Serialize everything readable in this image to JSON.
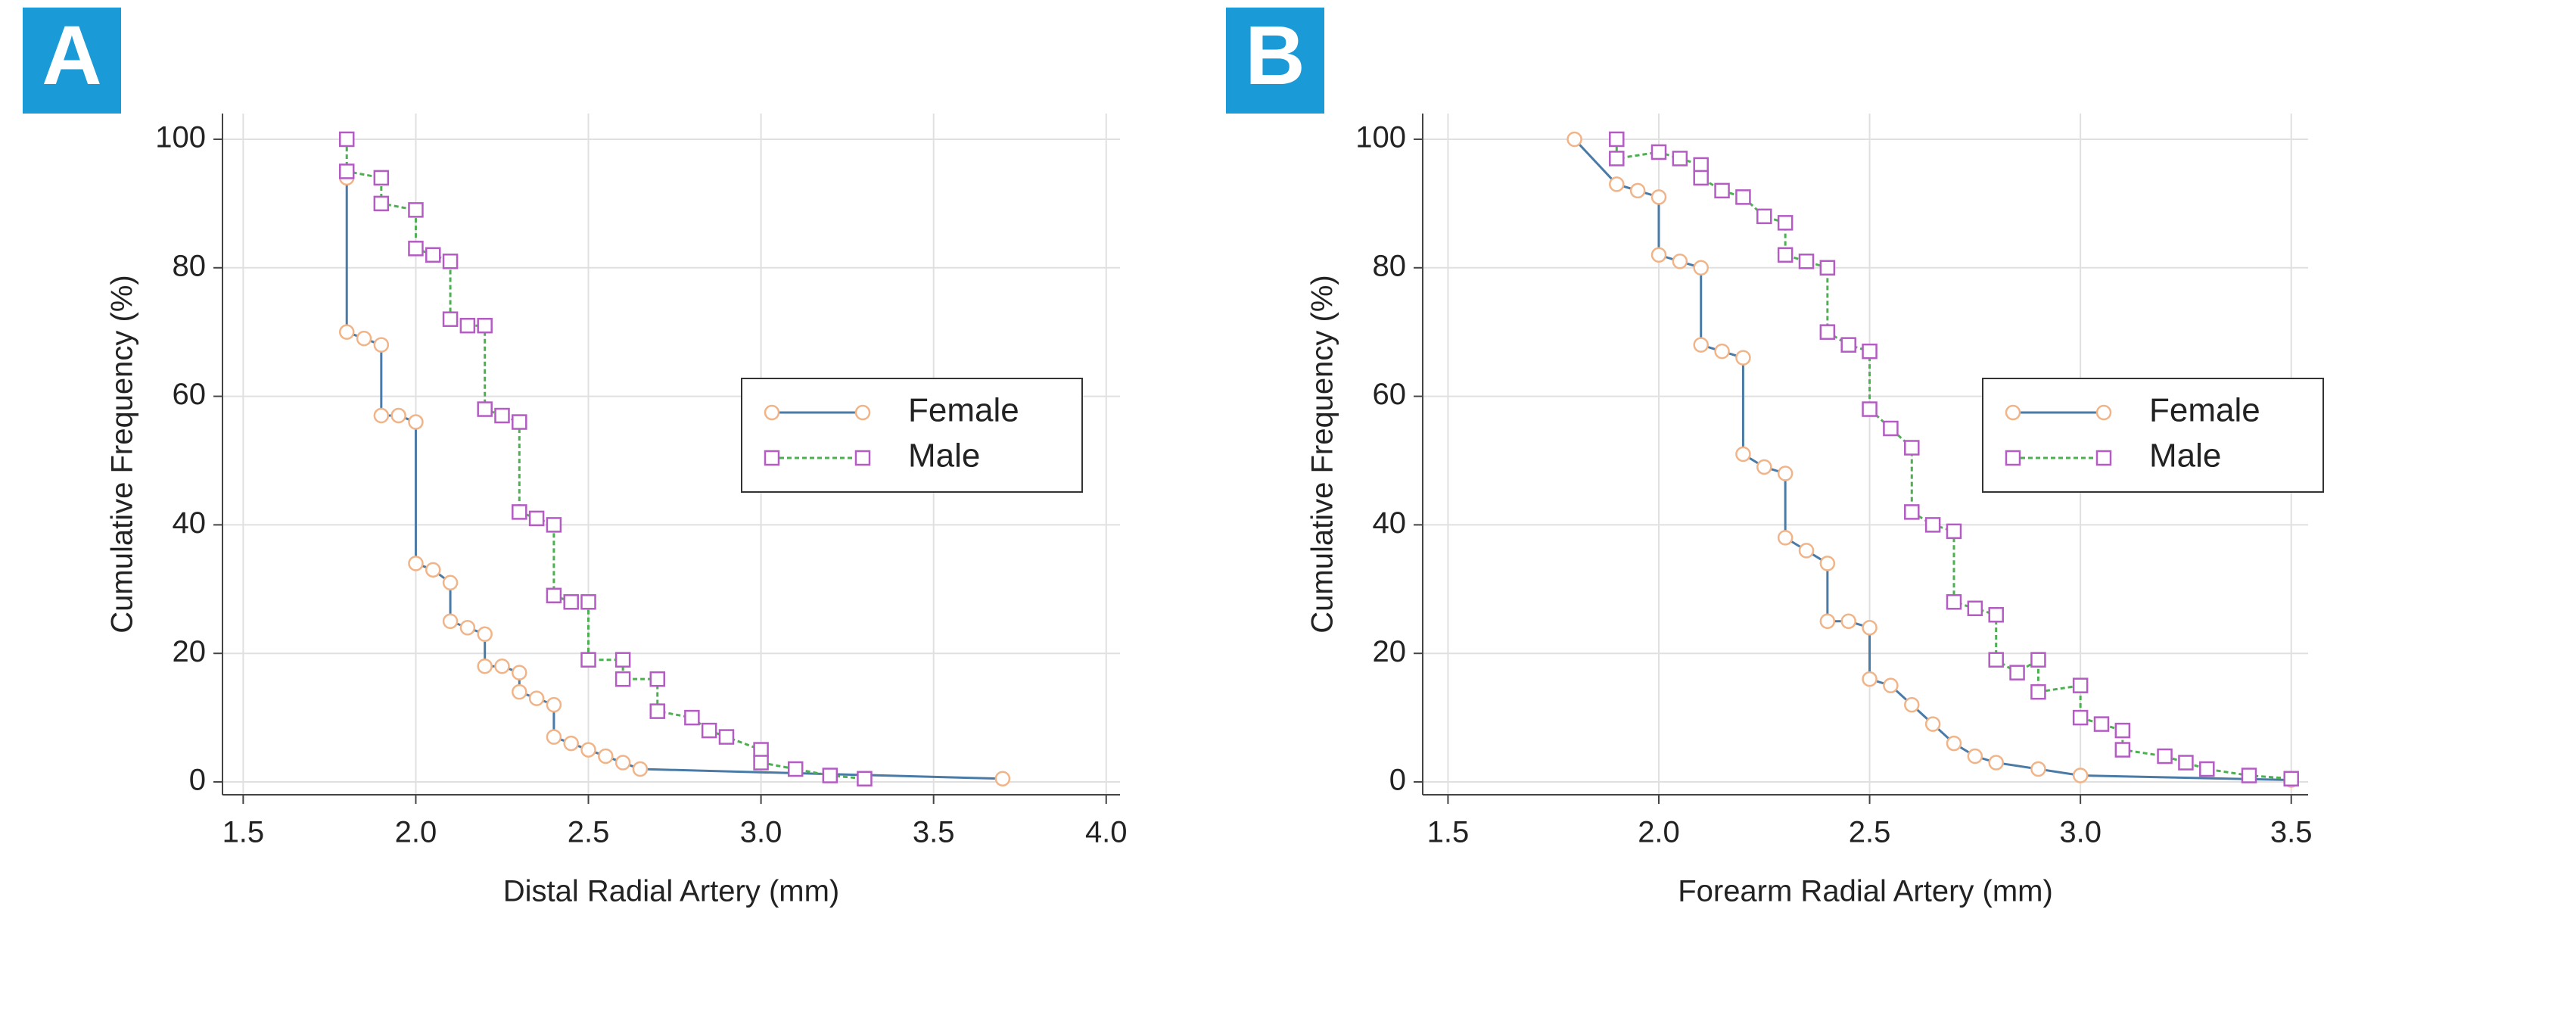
{
  "chart_data": [
    {
      "type": "line",
      "panel_label": "A",
      "xlabel": "Distal Radial Artery (mm)",
      "ylabel": "Cumulative Frequency (%)",
      "xlim": [
        1.44,
        4.04
      ],
      "ylim": [
        -2,
        104
      ],
      "xticks": [
        1.5,
        {
          "value": 2,
          "label": "2.0"
        },
        2.5,
        {
          "value": 3,
          "label": "3.0"
        },
        3.5,
        {
          "value": 4,
          "label": "4.0"
        }
      ],
      "yticks": [
        0,
        20,
        40,
        60,
        80,
        100
      ],
      "grid": true,
      "legend": "center right",
      "series": [
        {
          "name": "Female",
          "color": "#f0b488",
          "line_color": "#4a7aa6",
          "marker": "circle",
          "linestyle": "solid",
          "x": [
            1.8,
            1.8,
            1.85,
            1.9,
            1.9,
            1.95,
            2.0,
            2.0,
            2.05,
            2.1,
            2.1,
            2.15,
            2.2,
            2.2,
            2.25,
            2.3,
            2.3,
            2.35,
            2.4,
            2.4,
            2.45,
            2.5,
            2.55,
            2.6,
            2.65,
            3.7
          ],
          "values": [
            94,
            70,
            69,
            68,
            57,
            57,
            56,
            34,
            33,
            31,
            25,
            24,
            23,
            18,
            18,
            17,
            14,
            13,
            12,
            7,
            6,
            5,
            4,
            3,
            2,
            0.5
          ]
        },
        {
          "name": "Male",
          "color": "#b45cc4",
          "line_color": "#4caf50",
          "marker": "square",
          "linestyle": "dashed",
          "x": [
            1.8,
            1.8,
            1.9,
            1.9,
            2.0,
            2.0,
            2.05,
            2.1,
            2.1,
            2.15,
            2.2,
            2.2,
            2.25,
            2.3,
            2.3,
            2.35,
            2.4,
            2.4,
            2.45,
            2.5,
            2.5,
            2.6,
            2.6,
            2.7,
            2.7,
            2.8,
            2.85,
            2.9,
            3.0,
            3.0,
            3.1,
            3.2,
            3.3
          ],
          "values": [
            100,
            95,
            94,
            90,
            89,
            83,
            82,
            81,
            72,
            71,
            71,
            58,
            57,
            56,
            42,
            41,
            40,
            29,
            28,
            28,
            19,
            19,
            16,
            16,
            11,
            10,
            8,
            7,
            5,
            3,
            2,
            1,
            0.5
          ]
        }
      ]
    },
    {
      "type": "line",
      "panel_label": "B",
      "xlabel": "Forearm Radial Artery (mm)",
      "ylabel": "Cumulative Frequency (%)",
      "xlim": [
        1.44,
        3.54
      ],
      "ylim": [
        -2,
        104
      ],
      "xticks": [
        1.5,
        {
          "value": 2,
          "label": "2.0"
        },
        2.5,
        {
          "value": 3,
          "label": "3.0"
        },
        3.5
      ],
      "yticks": [
        0,
        20,
        40,
        60,
        80,
        100
      ],
      "grid": true,
      "legend": "center right",
      "series": [
        {
          "name": "Female",
          "color": "#f0b488",
          "line_color": "#4a7aa6",
          "marker": "circle",
          "linestyle": "solid",
          "x": [
            1.8,
            1.9,
            1.95,
            2.0,
            2.0,
            2.05,
            2.1,
            2.1,
            2.15,
            2.2,
            2.2,
            2.25,
            2.3,
            2.3,
            2.35,
            2.4,
            2.4,
            2.45,
            2.5,
            2.5,
            2.55,
            2.6,
            2.65,
            2.7,
            2.75,
            2.8,
            2.9,
            3.0,
            3.5
          ],
          "values": [
            100,
            93,
            92,
            91,
            82,
            81,
            80,
            68,
            67,
            66,
            51,
            49,
            48,
            38,
            36,
            34,
            25,
            25,
            24,
            16,
            15,
            12,
            9,
            6,
            4,
            3,
            2,
            1,
            0.3
          ]
        },
        {
          "name": "Male",
          "color": "#b45cc4",
          "line_color": "#4caf50",
          "marker": "square",
          "linestyle": "dashed",
          "x": [
            1.9,
            1.9,
            2.0,
            2.05,
            2.1,
            2.1,
            2.15,
            2.2,
            2.25,
            2.3,
            2.3,
            2.35,
            2.4,
            2.4,
            2.45,
            2.5,
            2.5,
            2.55,
            2.6,
            2.6,
            2.65,
            2.7,
            2.7,
            2.75,
            2.8,
            2.8,
            2.85,
            2.9,
            2.9,
            3.0,
            3.0,
            3.05,
            3.1,
            3.1,
            3.2,
            3.25,
            3.3,
            3.4,
            3.5
          ],
          "values": [
            100,
            97,
            98,
            97,
            96,
            94,
            92,
            91,
            88,
            87,
            82,
            81,
            80,
            70,
            68,
            67,
            58,
            55,
            52,
            42,
            40,
            39,
            28,
            27,
            26,
            19,
            17,
            19,
            14,
            15,
            10,
            9,
            8,
            5,
            4,
            3,
            2,
            1,
            0.5
          ]
        }
      ]
    }
  ]
}
